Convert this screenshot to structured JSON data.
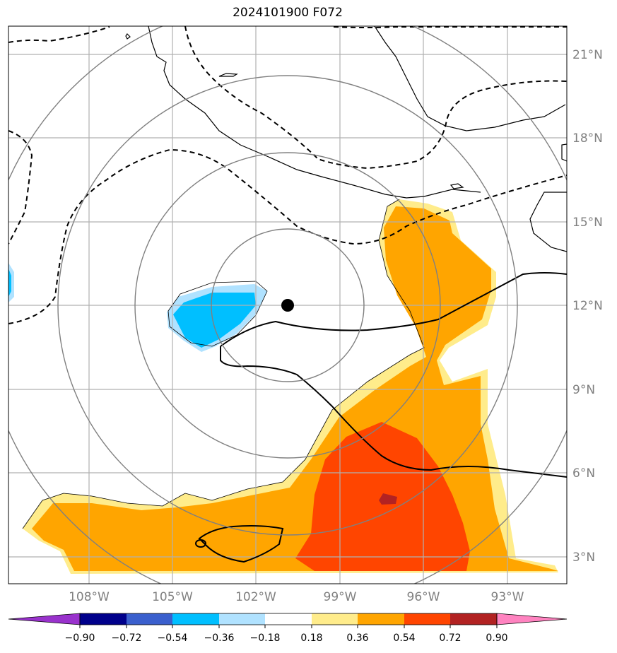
{
  "title": "2024101900 F072",
  "colors": {
    "ocean": "#ffffff",
    "grid": "#b0b0b0",
    "range_rings": "#808080",
    "tick_label": "#808080",
    "center_marker": "#000000"
  },
  "map": {
    "lon_ticks": [
      {
        "value": -108,
        "label": "108°W"
      },
      {
        "value": -105,
        "label": "105°W"
      },
      {
        "value": -102,
        "label": "102°W"
      },
      {
        "value": -99,
        "label": "99°W"
      },
      {
        "value": -96,
        "label": "96°W"
      },
      {
        "value": -93,
        "label": "93°W"
      }
    ],
    "lat_ticks": [
      {
        "value": 21,
        "label": "21°N"
      },
      {
        "value": 18,
        "label": "18°N"
      },
      {
        "value": 15,
        "label": "15°N"
      },
      {
        "value": 12,
        "label": "12°N"
      },
      {
        "value": 9,
        "label": "9°N"
      },
      {
        "value": 6,
        "label": "6°N"
      },
      {
        "value": 3,
        "label": "3°N"
      }
    ],
    "storm_center": {
      "lon": -100.8,
      "lat": 12.0
    },
    "range_rings_deg": [
      2.7,
      5.5,
      8.2,
      11.0
    ]
  },
  "colorbar": {
    "ticks": [
      "−0.90",
      "−0.72",
      "−0.54",
      "−0.36",
      "−0.18",
      "0.18",
      "0.36",
      "0.54",
      "0.72",
      "0.90"
    ],
    "colors": [
      "#9932cc",
      "#00008b",
      "#3a5fcd",
      "#00bfff",
      "#b0e2ff",
      "#ffffff",
      "#ffec8b",
      "#ffa500",
      "#ff4500",
      "#b22222",
      "#ff83c0"
    ]
  }
}
